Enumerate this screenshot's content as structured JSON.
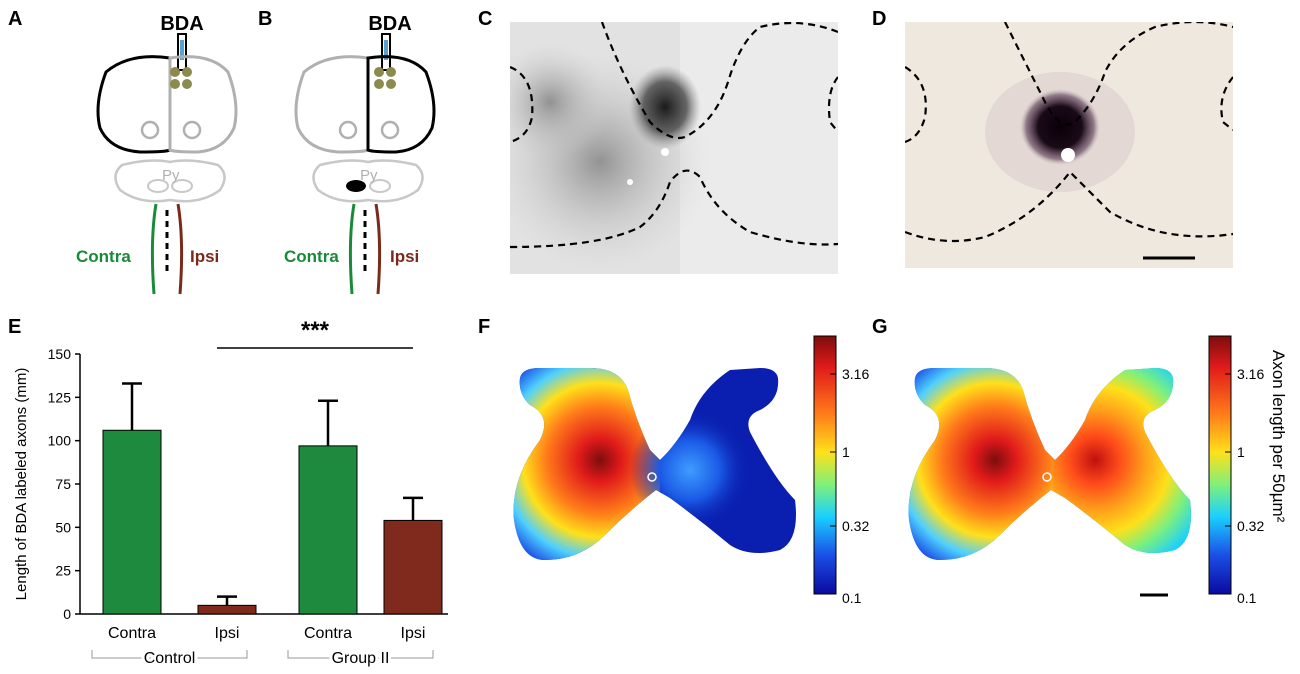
{
  "panels": {
    "a": {
      "letter": "A",
      "tracer": "BDA",
      "pyramid": "Py",
      "contra": "Contra",
      "ipsi": "Ipsi"
    },
    "b": {
      "letter": "B",
      "tracer": "BDA",
      "pyramid": "Py",
      "contra": "Contra",
      "ipsi": "Ipsi"
    },
    "c": {
      "letter": "C"
    },
    "d": {
      "letter": "D"
    },
    "e": {
      "letter": "E"
    },
    "f": {
      "letter": "F"
    },
    "g": {
      "letter": "G"
    }
  },
  "colors": {
    "contra_green": "#1a8a3a",
    "ipsi_brown": "#7a2a1a",
    "outline_black": "#000000",
    "outline_gray": "#b0b0b0",
    "injection_olive": "#8c8a4e"
  },
  "chart_data": {
    "type": "bar",
    "ylabel": "Length of BDA labeled axons (mm)",
    "ylim": [
      0,
      150
    ],
    "yticks": [
      0,
      25,
      50,
      75,
      100,
      125,
      150
    ],
    "categories": [
      "Contra",
      "Ipsi",
      "Contra",
      "Ipsi"
    ],
    "groups": [
      {
        "label": "Control",
        "span": [
          0,
          1
        ]
      },
      {
        "label": "Group II",
        "span": [
          2,
          3
        ]
      }
    ],
    "values": [
      106,
      5,
      97,
      54
    ],
    "errors": [
      27,
      5,
      26,
      13
    ],
    "bar_colors": [
      "#1e8a3e",
      "#7f2a1c",
      "#1e8a3e",
      "#7f2a1c"
    ],
    "significance": {
      "label": "***",
      "between": [
        1,
        3
      ]
    }
  },
  "heatmaps": {
    "colorbar_ticks": [
      "3.16",
      "1",
      "0.32",
      "0.1"
    ],
    "colorbar_label": "Axon length per 50µm²",
    "scale": "log"
  }
}
